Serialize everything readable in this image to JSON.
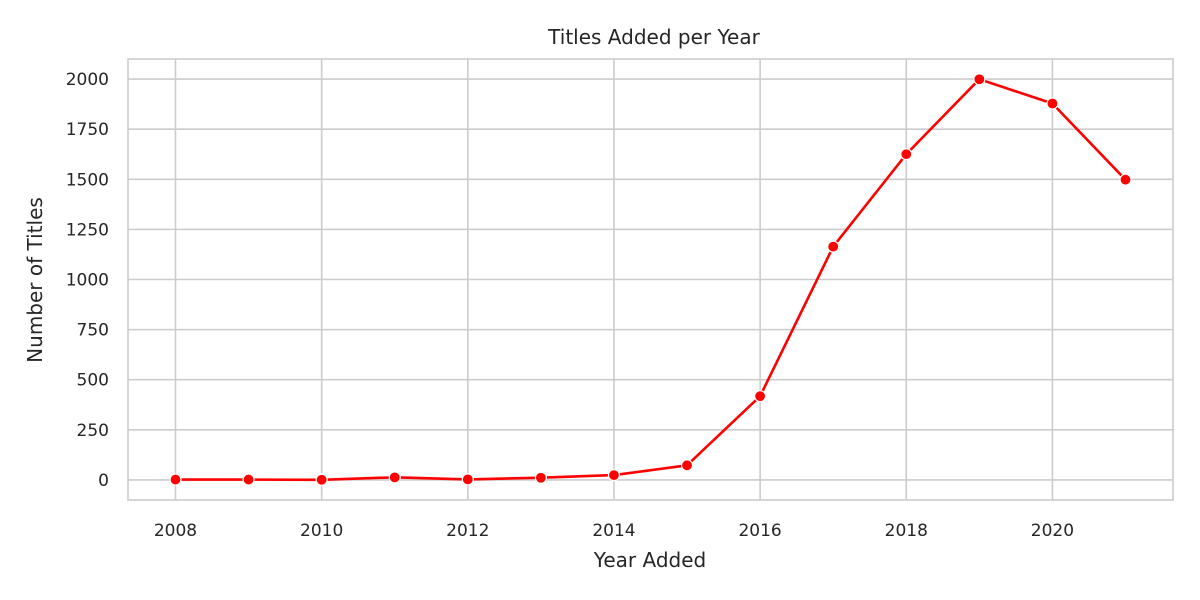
{
  "chart_data": {
    "type": "line",
    "title": "Titles Added per Year",
    "xlabel": "Year Added",
    "ylabel": "Number of Titles",
    "x": [
      2008,
      2009,
      2010,
      2011,
      2012,
      2013,
      2014,
      2015,
      2016,
      2017,
      2018,
      2019,
      2020,
      2021
    ],
    "series": [
      {
        "values": [
          2,
          2,
          1,
          13,
          3,
          11,
          24,
          73,
          418,
          1164,
          1625,
          1999,
          1878,
          1498
        ],
        "color": "#ff0000"
      }
    ],
    "xlim": [
      2007.35,
      2021.65
    ],
    "ylim": [
      -100,
      2100
    ],
    "xticks": [
      2008,
      2010,
      2012,
      2014,
      2016,
      2018,
      2020
    ],
    "yticks": [
      0,
      250,
      500,
      750,
      1000,
      1250,
      1500,
      1750,
      2000
    ],
    "grid": true,
    "marker": "circle"
  }
}
